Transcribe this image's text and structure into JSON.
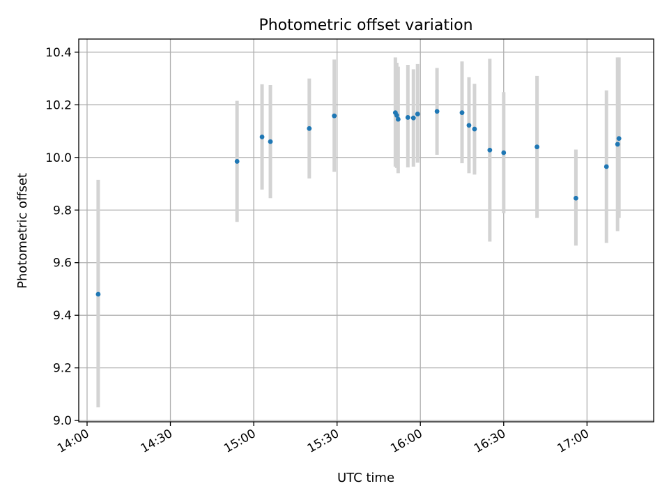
{
  "chart_data": {
    "type": "scatter",
    "title": "Photometric offset variation",
    "xlabel": "UTC time",
    "ylabel": "Photometric offset",
    "x_unit": "time of day (HH:MM)",
    "xlim": [
      "13:57",
      "17:24"
    ],
    "ylim": [
      8.995,
      10.45
    ],
    "x_ticks": [
      "14:00",
      "14:30",
      "15:00",
      "15:30",
      "16:00",
      "16:30",
      "17:00"
    ],
    "y_ticks": [
      9.0,
      9.2,
      9.4,
      9.6,
      9.8,
      10.0,
      10.2,
      10.4
    ],
    "y_tick_labels": [
      "9.0",
      "9.2",
      "9.4",
      "9.6",
      "9.8",
      "10.0",
      "10.2",
      "10.4"
    ],
    "grid": true,
    "point_color": "#1f77b4",
    "errorbar_color": "#d3d3d3",
    "points": [
      {
        "x": "14:04",
        "y": 9.48,
        "ylow": 9.05,
        "yhigh": 9.915
      },
      {
        "x": "14:54",
        "y": 9.985,
        "ylow": 9.755,
        "yhigh": 10.215
      },
      {
        "x": "15:03",
        "y": 10.078,
        "ylow": 9.878,
        "yhigh": 10.278
      },
      {
        "x": "15:06",
        "y": 10.06,
        "ylow": 9.845,
        "yhigh": 10.275
      },
      {
        "x": "15:20",
        "y": 10.11,
        "ylow": 9.92,
        "yhigh": 10.3
      },
      {
        "x": "15:29",
        "y": 10.158,
        "ylow": 9.945,
        "yhigh": 10.372
      },
      {
        "x": "15:51",
        "y": 10.17,
        "ylow": 9.965,
        "yhigh": 10.38
      },
      {
        "x": "15:51.5",
        "y": 10.16,
        "ylow": 9.96,
        "yhigh": 10.36
      },
      {
        "x": "15:52",
        "y": 10.145,
        "ylow": 9.94,
        "yhigh": 10.345
      },
      {
        "x": "15:55.5",
        "y": 10.152,
        "ylow": 9.962,
        "yhigh": 10.352
      },
      {
        "x": "15:57.5",
        "y": 10.15,
        "ylow": 9.965,
        "yhigh": 10.335
      },
      {
        "x": "15:59",
        "y": 10.165,
        "ylow": 9.98,
        "yhigh": 10.355
      },
      {
        "x": "16:06",
        "y": 10.175,
        "ylow": 10.01,
        "yhigh": 10.34
      },
      {
        "x": "16:15",
        "y": 10.17,
        "ylow": 9.978,
        "yhigh": 10.365
      },
      {
        "x": "16:17.5",
        "y": 10.122,
        "ylow": 9.94,
        "yhigh": 10.305
      },
      {
        "x": "16:19.5",
        "y": 10.108,
        "ylow": 9.935,
        "yhigh": 10.28
      },
      {
        "x": "16:25",
        "y": 10.028,
        "ylow": 9.68,
        "yhigh": 10.375
      },
      {
        "x": "16:30",
        "y": 10.018,
        "ylow": 9.788,
        "yhigh": 10.248
      },
      {
        "x": "16:42",
        "y": 10.04,
        "ylow": 9.77,
        "yhigh": 10.31
      },
      {
        "x": "16:56",
        "y": 9.845,
        "ylow": 9.665,
        "yhigh": 10.03
      },
      {
        "x": "17:07",
        "y": 9.965,
        "ylow": 9.675,
        "yhigh": 10.255
      },
      {
        "x": "17:11",
        "y": 10.05,
        "ylow": 9.72,
        "yhigh": 10.38
      },
      {
        "x": "17:11.5",
        "y": 10.072,
        "ylow": 9.77,
        "yhigh": 10.38
      }
    ]
  }
}
